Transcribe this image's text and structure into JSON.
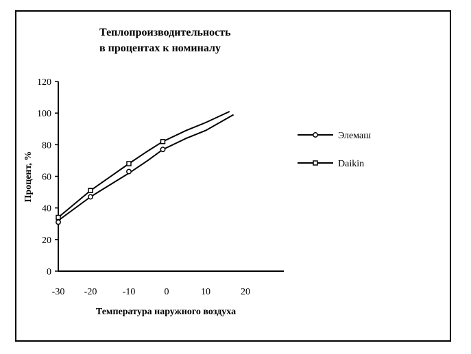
{
  "chart_data": {
    "type": "line",
    "title_lines": [
      "Теплопроизводительность",
      "в процентах к номиналу"
    ],
    "xlabel": "Температура наружного воздуха",
    "ylabel": "Процент, %",
    "xlim": [
      -30,
      30
    ],
    "ylim": [
      0,
      120
    ],
    "xticks": [
      "-30",
      "-20",
      "-10",
      "0",
      "10",
      "20"
    ],
    "xtick_values": [
      -30,
      -20,
      -10,
      0,
      10,
      20
    ],
    "yticks": [
      "120",
      "100",
      "80",
      "60",
      "40",
      "20",
      "0"
    ],
    "ytick_values": [
      120,
      100,
      80,
      60,
      40,
      20,
      0
    ],
    "grid": false,
    "legend_position": "right",
    "series": [
      {
        "name": "Элемаш",
        "marker": "circle",
        "color": "#000000",
        "line": [
          [
            -30,
            32
          ],
          [
            -20,
            47
          ],
          [
            -10,
            62
          ],
          [
            -5,
            70
          ],
          [
            -1,
            77
          ],
          [
            5,
            84
          ],
          [
            10,
            89
          ],
          [
            17,
            99
          ]
        ],
        "markers": [
          [
            -30,
            31
          ],
          [
            -20,
            47
          ],
          [
            -10,
            63
          ],
          [
            -1,
            77
          ]
        ]
      },
      {
        "name": "Daikin",
        "marker": "square",
        "color": "#000000",
        "line": [
          [
            -30,
            34
          ],
          [
            -20,
            51
          ],
          [
            -10,
            68
          ],
          [
            -5,
            76
          ],
          [
            -1,
            82
          ],
          [
            5,
            89
          ],
          [
            10,
            94
          ],
          [
            16,
            101
          ]
        ],
        "markers": [
          [
            -30,
            34
          ],
          [
            -20,
            51
          ],
          [
            -10,
            68
          ],
          [
            -1,
            82
          ]
        ]
      }
    ]
  }
}
